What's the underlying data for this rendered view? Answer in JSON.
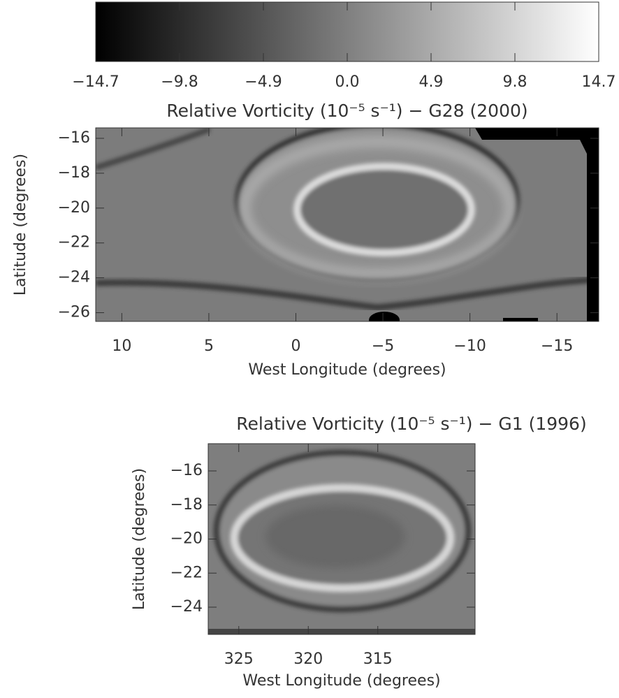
{
  "chart_data": [
    {
      "type": "colorbar",
      "colormap": [
        "#000000",
        "#ffffff"
      ],
      "xlim": [
        -14.7,
        14.7
      ],
      "xticks": [
        {
          "value": -14.7,
          "label": "−14.7"
        },
        {
          "value": -9.8,
          "label": "−9.8"
        },
        {
          "value": -4.9,
          "label": "−4.9"
        },
        {
          "value": 0,
          "label": "0.0"
        },
        4.9,
        9.8,
        14.7
      ]
    },
    {
      "type": "image",
      "title": "Relative Vorticity (10⁻⁵ s⁻¹) − G28 (2000)",
      "xlabel": "West Longitude (degrees)",
      "ylabel": "Latitude (degrees)",
      "xlim": [
        11.5,
        -17.4
      ],
      "ylim": [
        -26.5,
        -15.4
      ],
      "xticks": [
        10,
        5,
        0,
        {
          "value": -5,
          "label": "−5"
        },
        {
          "value": -10,
          "label": "−10"
        },
        {
          "value": -15,
          "label": "−15"
        }
      ],
      "yticks": [
        {
          "value": -16,
          "label": "−16"
        },
        {
          "value": -18,
          "label": "−18"
        },
        {
          "value": -20,
          "label": "−20"
        },
        {
          "value": -22,
          "label": "−22"
        },
        {
          "value": -24,
          "label": "−24"
        },
        {
          "value": -26,
          "label": "−26"
        }
      ]
    },
    {
      "type": "image",
      "title": "Relative Vorticity (10⁻⁵ s⁻¹) − G1 (1996)",
      "xlabel": "West Longitude (degrees)",
      "ylabel": "Latitude (degrees)",
      "xlim": [
        327.2,
        308
      ],
      "ylim": [
        -25.6,
        -14.4
      ],
      "xticks": [
        325,
        320,
        315
      ],
      "yticks": [
        {
          "value": -16,
          "label": "−16"
        },
        {
          "value": -18,
          "label": "−18"
        },
        {
          "value": -20,
          "label": "−20"
        },
        {
          "value": -22,
          "label": "−22"
        },
        {
          "value": -24,
          "label": "−24"
        }
      ]
    }
  ]
}
